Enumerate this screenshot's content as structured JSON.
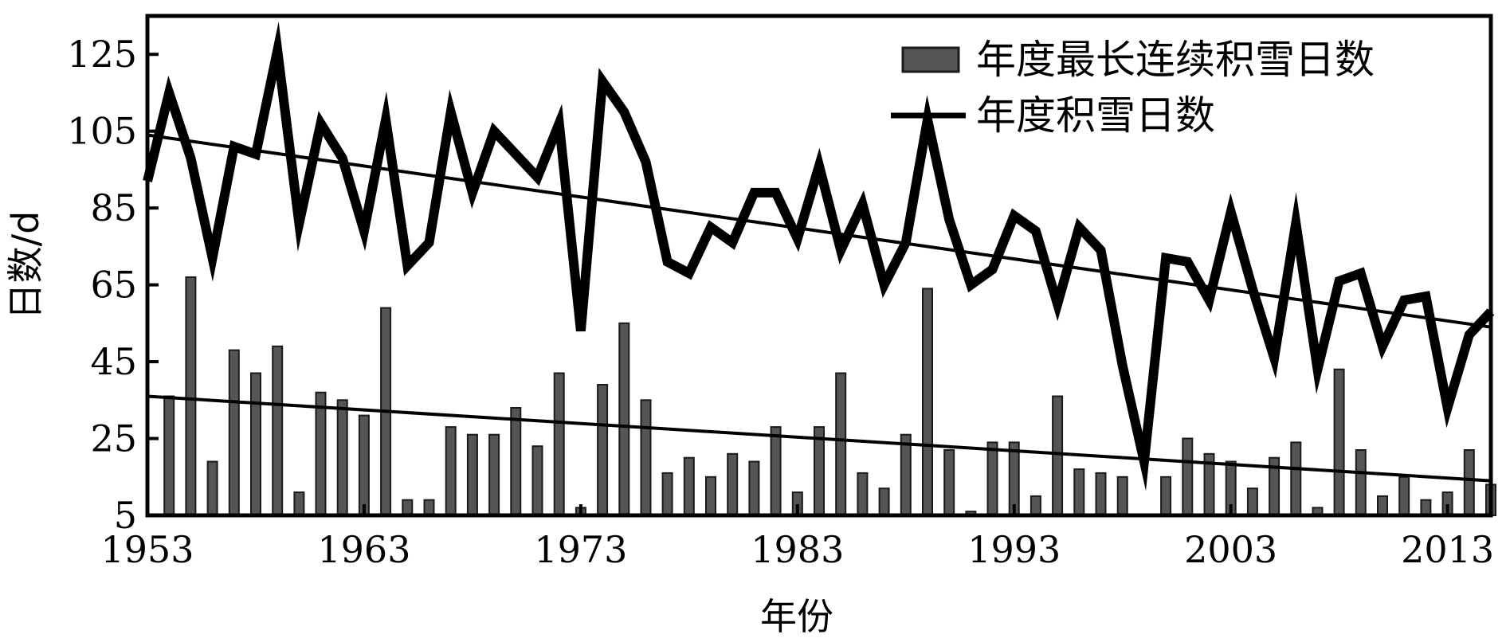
{
  "chart_data": {
    "type": "bar+line",
    "xlabel": "年份",
    "ylabel": "日数/d",
    "xlim": [
      1953,
      2015
    ],
    "ylim": [
      5,
      135
    ],
    "xticks": [
      "1953",
      "1963",
      "1973",
      "1983",
      "1993",
      "2003",
      "2013"
    ],
    "yticks": [
      "5",
      "25",
      "45",
      "65",
      "85",
      "105",
      "125"
    ],
    "grid": false,
    "legend_position": "top-right",
    "colors": {
      "bars": "#555555",
      "bar_edge": "#1a1a1a",
      "line": "#000000"
    },
    "x": [
      1953,
      1954,
      1955,
      1956,
      1957,
      1958,
      1959,
      1960,
      1961,
      1962,
      1963,
      1964,
      1965,
      1966,
      1967,
      1968,
      1969,
      1970,
      1971,
      1972,
      1973,
      1974,
      1975,
      1976,
      1977,
      1978,
      1979,
      1980,
      1981,
      1982,
      1983,
      1984,
      1985,
      1986,
      1987,
      1988,
      1989,
      1990,
      1991,
      1992,
      1993,
      1994,
      1995,
      1996,
      1997,
      1998,
      1999,
      2000,
      2001,
      2002,
      2003,
      2004,
      2005,
      2006,
      2007,
      2008,
      2009,
      2010,
      2011,
      2012,
      2013,
      2014,
      2015
    ],
    "series": [
      {
        "name": "年度最长连续积雪日数",
        "type": "bar",
        "values": [
          0,
          36,
          67,
          19,
          48,
          42,
          49,
          11,
          37,
          35,
          31,
          59,
          9,
          9,
          28,
          26,
          26,
          33,
          23,
          42,
          7,
          39,
          55,
          35,
          16,
          20,
          15,
          21,
          19,
          28,
          11,
          28,
          42,
          16,
          12,
          26,
          64,
          22,
          6,
          24,
          24,
          10,
          36,
          17,
          16,
          15,
          0,
          15,
          25,
          21,
          19,
          12,
          20,
          24,
          7,
          43,
          22,
          10,
          15,
          9,
          11,
          22,
          13
        ]
      },
      {
        "name": "年度积雪日数",
        "type": "line",
        "values": [
          92,
          115,
          98,
          72,
          101,
          99,
          126,
          81,
          107,
          98,
          79,
          108,
          70,
          76,
          110,
          89,
          105,
          99,
          93,
          107,
          53,
          118,
          110,
          97,
          71,
          68,
          80,
          76,
          89,
          89,
          77,
          96,
          74,
          86,
          65,
          76,
          108,
          82,
          65,
          69,
          83,
          79,
          60,
          80,
          74,
          44,
          19,
          72,
          71,
          61,
          84,
          64,
          46,
          81,
          43,
          66,
          68,
          49,
          61,
          62,
          33,
          52,
          58
        ]
      }
    ],
    "trend_lines": [
      {
        "series": "年度积雪日数",
        "start": [
          1953,
          104
        ],
        "end": [
          2015,
          54
        ]
      },
      {
        "series": "年度最长连续积雪日数",
        "start": [
          1953,
          36
        ],
        "end": [
          2015,
          14
        ]
      }
    ]
  }
}
